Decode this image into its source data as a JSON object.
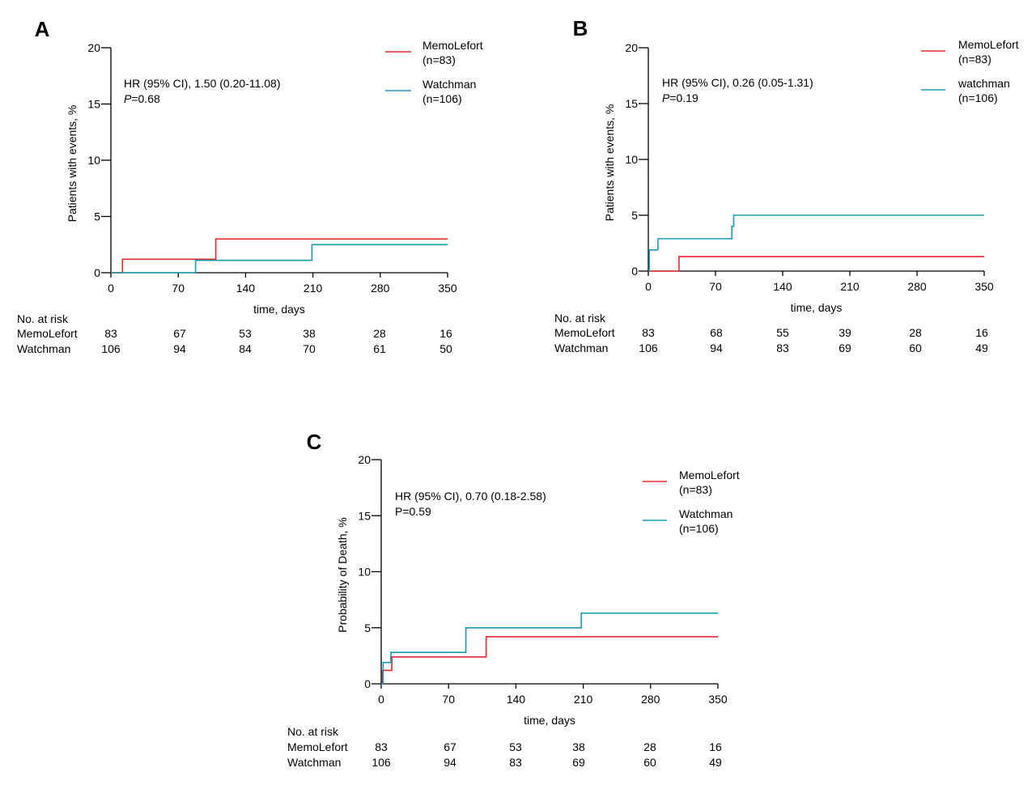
{
  "chart_data": [
    {
      "panel": "A",
      "type": "line",
      "step": true,
      "xlabel": "time, days",
      "ylabel": "Patients with events, %",
      "xlim": [
        0,
        350
      ],
      "ylim": [
        0,
        20
      ],
      "xticks": [
        0,
        70,
        140,
        210,
        280,
        350
      ],
      "yticks": [
        0,
        5,
        10,
        15,
        20
      ],
      "annotation": {
        "line1": "HR (95% CI), 1.50 (0.20-11.08)",
        "p_label": "P",
        "p_value": "=0.68",
        "p_italic": true
      },
      "series": [
        {
          "name": "MemoLefort",
          "n_label": "(n=83)",
          "color": "#e8282b",
          "x": [
            0,
            12,
            12,
            109,
            109,
            350
          ],
          "y": [
            0,
            0,
            1.2,
            1.2,
            3.0,
            3.0
          ]
        },
        {
          "name": "Watchman",
          "n_label": "(n=106)",
          "color": "#1a9bb5",
          "x": [
            0,
            88,
            88,
            209,
            209,
            350
          ],
          "y": [
            0,
            0,
            1.1,
            1.1,
            2.5,
            2.5
          ]
        }
      ],
      "risk_table": {
        "title": "No. at risk",
        "rows": [
          {
            "label": "MemoLefort",
            "values": [
              "83",
              "67",
              "53",
              "38",
              "28",
              "16"
            ]
          },
          {
            "label": "Watchman",
            "values": [
              "106",
              "94",
              "84",
              "70",
              "61",
              "50"
            ]
          }
        ]
      }
    },
    {
      "panel": "B",
      "type": "line",
      "step": true,
      "xlabel": "time, days",
      "ylabel": "Patients with events, %",
      "xlim": [
        0,
        350
      ],
      "ylim": [
        0,
        20
      ],
      "xticks": [
        0,
        70,
        140,
        210,
        280,
        350
      ],
      "yticks": [
        0,
        5,
        10,
        15,
        20
      ],
      "annotation": {
        "line1": "HR (95% CI), 0.26 (0.05-1.31)",
        "p_label": "P",
        "p_value": "=0.19",
        "p_italic": true
      },
      "series": [
        {
          "name": "MemoLefort",
          "n_label": "(n=83)",
          "color": "#e8282b",
          "x": [
            0,
            32,
            32,
            350
          ],
          "y": [
            0,
            0,
            1.3,
            1.3
          ]
        },
        {
          "name": "watchman",
          "n_label": "(n=106)",
          "color": "#1a9bb5",
          "x": [
            0,
            1,
            1,
            10,
            10,
            87,
            87,
            89,
            89,
            350
          ],
          "y": [
            0,
            0,
            1.9,
            1.9,
            2.9,
            2.9,
            4.0,
            4.0,
            5.0,
            5.0
          ]
        }
      ],
      "risk_table": {
        "title": "No. at risk",
        "rows": [
          {
            "label": "MemoLefort",
            "values": [
              "83",
              "68",
              "55",
              "39",
              "28",
              "16"
            ]
          },
          {
            "label": "Watchman",
            "values": [
              "106",
              "94",
              "83",
              "69",
              "60",
              "49"
            ]
          }
        ]
      }
    },
    {
      "panel": "C",
      "type": "line",
      "step": true,
      "xlabel": "time, days",
      "ylabel": "Probability of Death, %",
      "xlim": [
        0,
        350
      ],
      "ylim": [
        0,
        20
      ],
      "xticks": [
        0,
        70,
        140,
        210,
        280,
        350
      ],
      "yticks": [
        0,
        5,
        10,
        15,
        20
      ],
      "annotation": {
        "line1": "HR (95% CI), 0.70 (0.18-2.58)",
        "p_label": "P",
        "p_value": "=0.59",
        "p_italic": false
      },
      "series": [
        {
          "name": "MemoLefort",
          "n_label": "(n=83)",
          "color": "#e8282b",
          "x": [
            0,
            1,
            1,
            11,
            11,
            109,
            109,
            350
          ],
          "y": [
            0,
            0,
            1.2,
            1.2,
            2.4,
            2.4,
            4.2,
            4.2
          ]
        },
        {
          "name": "Watchman",
          "n_label": "(n=106)",
          "color": "#1a9bb5",
          "x": [
            0,
            2,
            2,
            10,
            10,
            88,
            88,
            208,
            208,
            350
          ],
          "y": [
            0,
            0,
            1.9,
            1.9,
            2.8,
            2.8,
            5.0,
            5.0,
            6.3,
            6.3
          ]
        }
      ],
      "risk_table": {
        "title": "No. at risk",
        "rows": [
          {
            "label": "MemoLefort",
            "values": [
              "83",
              "67",
              "53",
              "38",
              "28",
              "16"
            ]
          },
          {
            "label": "Watchman",
            "values": [
              "106",
              "94",
              "83",
              "69",
              "60",
              "49"
            ]
          }
        ]
      }
    }
  ]
}
